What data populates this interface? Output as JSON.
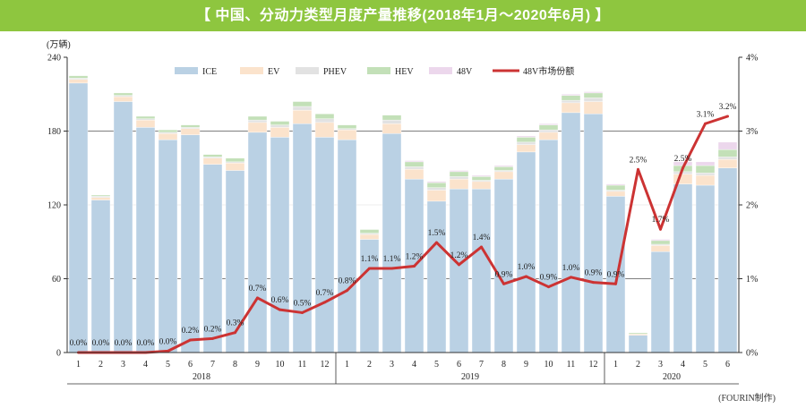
{
  "title": "【 中国、分动力类型月度产量推移(2018年1月～2020年6月) 】",
  "source": "(FOURIN制作)",
  "colors": {
    "title_bg": "#8ec63f",
    "ICE": "#bad1e4",
    "EV": "#fbe3cc",
    "PHEV": "#e2e2e2",
    "HEV": "#c3e0b8",
    "48V": "#ecd7ec",
    "line": "#cc3333"
  },
  "chart_data": {
    "type": "bar",
    "stacked": true,
    "y_unit_label": "(万辆)",
    "ylim": [
      0,
      240
    ],
    "yticks": [
      0,
      60,
      120,
      180,
      240
    ],
    "y2lim": [
      0,
      4
    ],
    "y2ticks": [
      "0%",
      "1%",
      "2%",
      "3%",
      "4%"
    ],
    "grid": "horizontal at 60, 180",
    "legend_position": "top-center",
    "categories": [
      "1",
      "2",
      "3",
      "4",
      "5",
      "6",
      "7",
      "8",
      "9",
      "10",
      "11",
      "12",
      "1",
      "2",
      "3",
      "4",
      "5",
      "6",
      "7",
      "8",
      "9",
      "10",
      "11",
      "12",
      "1",
      "2",
      "3",
      "4",
      "5",
      "6"
    ],
    "year_groups": [
      {
        "label": "2018",
        "count": 12
      },
      {
        "label": "2019",
        "count": 12
      },
      {
        "label": "2020",
        "count": 6
      }
    ],
    "series": [
      {
        "name": "ICE",
        "values": [
          219,
          124,
          204,
          183,
          173,
          177,
          153,
          148,
          179,
          175,
          186,
          175,
          173,
          92,
          178,
          141,
          123,
          133,
          133,
          141,
          163,
          173,
          195,
          194,
          127,
          14,
          82,
          137,
          136,
          150
        ]
      },
      {
        "name": "EV",
        "values": [
          3,
          2,
          4,
          6,
          5,
          5,
          5,
          6,
          8,
          8,
          11,
          12,
          8,
          4,
          8,
          8,
          9,
          8,
          6,
          6,
          6,
          6,
          8,
          10,
          4,
          1,
          5,
          8,
          8,
          7
        ]
      },
      {
        "name": "PHEV",
        "values": [
          1,
          1,
          1,
          1,
          1,
          1,
          1,
          1,
          2,
          2,
          3,
          3,
          1,
          1,
          3,
          2,
          2,
          2,
          1,
          1,
          2,
          2,
          2,
          3,
          1,
          0,
          1,
          2,
          2,
          2
        ]
      },
      {
        "name": "HEV",
        "values": [
          2,
          1,
          2,
          2,
          2,
          2,
          2,
          3,
          3,
          3,
          4,
          4,
          3,
          3,
          4,
          4,
          4,
          4,
          3,
          3,
          4,
          4,
          4,
          4,
          4,
          1,
          3,
          5,
          6,
          6
        ]
      },
      {
        "name": "48V",
        "values": [
          0,
          0,
          0,
          0,
          0,
          0,
          0,
          0,
          0,
          0,
          0,
          0,
          0,
          0,
          0,
          1,
          1,
          1,
          1,
          1,
          1,
          1,
          1,
          1,
          1,
          0,
          1,
          3,
          3,
          6
        ]
      }
    ],
    "line": {
      "name": "48V市场份额",
      "axis": "right",
      "values": [
        0.0,
        0.0,
        0.0,
        0.0,
        0.02,
        0.17,
        0.19,
        0.27,
        0.74,
        0.58,
        0.54,
        0.68,
        0.84,
        1.14,
        1.14,
        1.17,
        1.49,
        1.19,
        1.43,
        0.93,
        1.03,
        0.89,
        1.02,
        0.95,
        0.93,
        2.48,
        1.67,
        2.5,
        3.1,
        3.2
      ],
      "labels": [
        "0.0%",
        "0.0%",
        "0.0%",
        "0.0%",
        "0.0%",
        "0.2%",
        "0.2%",
        "0.3%",
        "0.7%",
        "0.6%",
        "0.5%",
        "0.7%",
        "0.8%",
        "1.1%",
        "1.1%",
        "1.2%",
        "1.5%",
        "1.2%",
        "1.4%",
        "0.9%",
        "1.0%",
        "0.9%",
        "1.0%",
        "0.9%",
        "0.9%",
        "2.5%",
        "1.7%",
        "2.5%",
        "3.1%",
        "3.2%"
      ]
    }
  }
}
